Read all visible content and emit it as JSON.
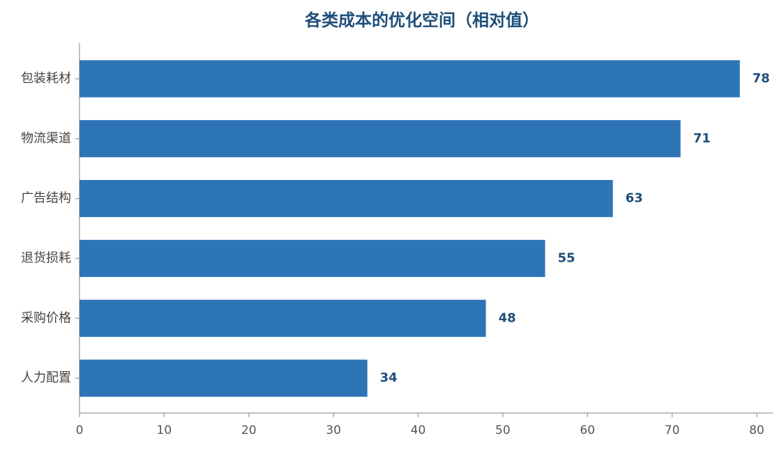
{
  "chart_data": {
    "type": "bar",
    "orientation": "horizontal",
    "title": "各类成本的优化空间（相对值）",
    "categories": [
      "包装耗材",
      "物流渠道",
      "广告结构",
      "退货损耗",
      "采购价格",
      "人力配置"
    ],
    "values": [
      78,
      71,
      63,
      55,
      48,
      34
    ],
    "color": "#2e75b6",
    "xlim": [
      0,
      81.9
    ],
    "xticks": [
      0,
      10,
      20,
      30,
      40,
      50,
      60,
      70,
      80
    ],
    "grid": false
  }
}
